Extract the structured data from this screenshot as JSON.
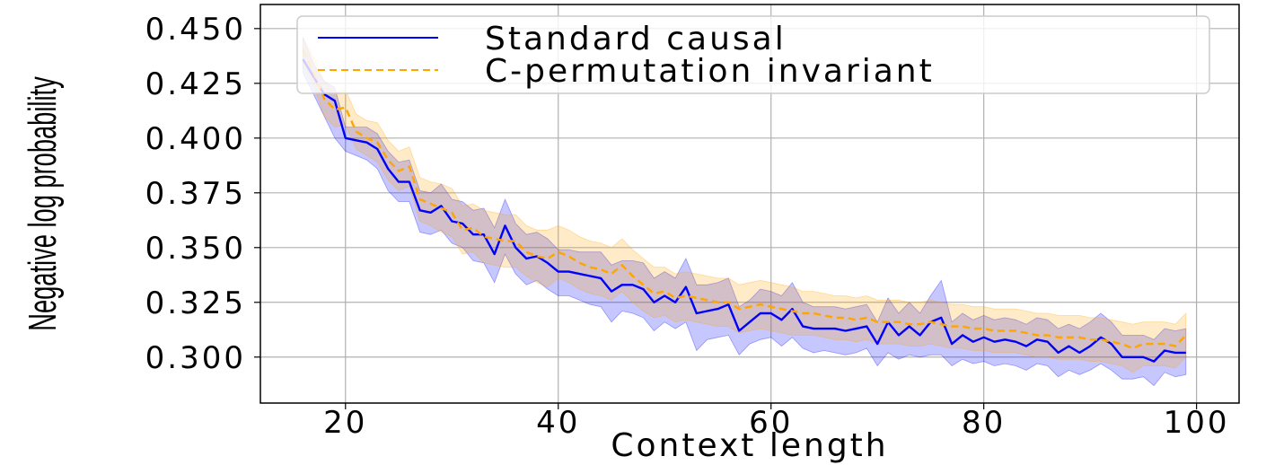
{
  "chart_data": {
    "type": "line",
    "xlabel": "Context length",
    "ylabel": "Negative log probability",
    "xlim": [
      12,
      104
    ],
    "ylim": [
      0.279,
      0.461
    ],
    "xticks": [
      20,
      40,
      60,
      80,
      100
    ],
    "yticks": [
      0.3,
      0.325,
      0.35,
      0.375,
      0.4,
      0.425,
      0.45
    ],
    "xtick_labels": [
      "20",
      "40",
      "60",
      "80",
      "100"
    ],
    "ytick_labels": [
      "0.300",
      "0.325",
      "0.350",
      "0.375",
      "0.400",
      "0.425",
      "0.450"
    ],
    "grid": true,
    "legend_position": "top-right",
    "x": [
      16,
      17,
      18,
      19,
      20,
      21,
      22,
      23,
      24,
      25,
      26,
      27,
      28,
      29,
      30,
      31,
      32,
      33,
      34,
      35,
      36,
      37,
      38,
      39,
      40,
      41,
      42,
      43,
      44,
      45,
      46,
      47,
      48,
      49,
      50,
      51,
      52,
      53,
      54,
      55,
      56,
      57,
      58,
      59,
      60,
      61,
      62,
      63,
      64,
      65,
      66,
      67,
      68,
      69,
      70,
      71,
      72,
      73,
      74,
      75,
      76,
      77,
      78,
      79,
      80,
      81,
      82,
      83,
      84,
      85,
      86,
      87,
      88,
      89,
      90,
      91,
      92,
      93,
      94,
      95,
      96,
      97,
      98,
      99
    ],
    "series": [
      {
        "name": "Standard causal",
        "color": "#0000ff",
        "style": "solid",
        "values": [
          0.436,
          0.428,
          0.42,
          0.417,
          0.4,
          0.399,
          0.398,
          0.395,
          0.386,
          0.38,
          0.38,
          0.367,
          0.366,
          0.369,
          0.362,
          0.361,
          0.356,
          0.356,
          0.347,
          0.36,
          0.35,
          0.345,
          0.346,
          0.343,
          0.339,
          0.339,
          0.338,
          0.337,
          0.336,
          0.33,
          0.333,
          0.333,
          0.331,
          0.325,
          0.328,
          0.325,
          0.332,
          0.32,
          0.321,
          0.322,
          0.324,
          0.312,
          0.316,
          0.32,
          0.32,
          0.317,
          0.322,
          0.314,
          0.313,
          0.313,
          0.313,
          0.312,
          0.313,
          0.314,
          0.306,
          0.316,
          0.31,
          0.314,
          0.31,
          0.316,
          0.318,
          0.306,
          0.31,
          0.307,
          0.309,
          0.307,
          0.308,
          0.307,
          0.305,
          0.308,
          0.307,
          0.302,
          0.305,
          0.302,
          0.305,
          0.309,
          0.306,
          0.3,
          0.3,
          0.3,
          0.298,
          0.303,
          0.302,
          0.302
        ],
        "band_lower": [
          0.43,
          0.42,
          0.41,
          0.4,
          0.394,
          0.392,
          0.39,
          0.386,
          0.376,
          0.371,
          0.371,
          0.357,
          0.356,
          0.358,
          0.352,
          0.35,
          0.344,
          0.343,
          0.334,
          0.347,
          0.338,
          0.333,
          0.335,
          0.331,
          0.328,
          0.328,
          0.326,
          0.324,
          0.323,
          0.316,
          0.321,
          0.32,
          0.318,
          0.312,
          0.316,
          0.313,
          0.316,
          0.303,
          0.308,
          0.309,
          0.31,
          0.301,
          0.306,
          0.308,
          0.309,
          0.305,
          0.309,
          0.304,
          0.302,
          0.303,
          0.302,
          0.301,
          0.302,
          0.304,
          0.296,
          0.302,
          0.299,
          0.301,
          0.3,
          0.301,
          0.301,
          0.296,
          0.299,
          0.297,
          0.298,
          0.296,
          0.297,
          0.296,
          0.294,
          0.297,
          0.296,
          0.291,
          0.294,
          0.292,
          0.294,
          0.297,
          0.294,
          0.29,
          0.29,
          0.291,
          0.287,
          0.293,
          0.291,
          0.292
        ],
        "band_upper": [
          0.446,
          0.434,
          0.426,
          0.423,
          0.405,
          0.405,
          0.405,
          0.402,
          0.394,
          0.389,
          0.39,
          0.376,
          0.375,
          0.379,
          0.372,
          0.371,
          0.367,
          0.368,
          0.359,
          0.372,
          0.361,
          0.356,
          0.357,
          0.354,
          0.349,
          0.349,
          0.348,
          0.348,
          0.348,
          0.342,
          0.344,
          0.344,
          0.343,
          0.336,
          0.339,
          0.336,
          0.345,
          0.333,
          0.333,
          0.334,
          0.336,
          0.323,
          0.326,
          0.331,
          0.33,
          0.328,
          0.334,
          0.325,
          0.323,
          0.323,
          0.323,
          0.322,
          0.323,
          0.324,
          0.316,
          0.327,
          0.32,
          0.325,
          0.32,
          0.328,
          0.335,
          0.316,
          0.32,
          0.317,
          0.319,
          0.317,
          0.318,
          0.317,
          0.315,
          0.318,
          0.317,
          0.313,
          0.315,
          0.313,
          0.316,
          0.32,
          0.316,
          0.31,
          0.31,
          0.31,
          0.308,
          0.313,
          0.312,
          0.313
        ]
      },
      {
        "name": "C-permutation invariant",
        "color": "#ffa500",
        "style": "dashed",
        "values": [
          0.44,
          0.43,
          0.418,
          0.413,
          0.414,
          0.403,
          0.4,
          0.398,
          0.39,
          0.385,
          0.387,
          0.372,
          0.37,
          0.368,
          0.366,
          0.358,
          0.359,
          0.355,
          0.354,
          0.353,
          0.353,
          0.348,
          0.346,
          0.345,
          0.348,
          0.346,
          0.343,
          0.341,
          0.34,
          0.338,
          0.342,
          0.337,
          0.333,
          0.329,
          0.33,
          0.327,
          0.328,
          0.327,
          0.326,
          0.325,
          0.325,
          0.322,
          0.323,
          0.324,
          0.323,
          0.322,
          0.321,
          0.32,
          0.32,
          0.319,
          0.318,
          0.318,
          0.317,
          0.318,
          0.316,
          0.316,
          0.316,
          0.315,
          0.315,
          0.316,
          0.315,
          0.314,
          0.314,
          0.313,
          0.313,
          0.312,
          0.312,
          0.312,
          0.311,
          0.31,
          0.31,
          0.309,
          0.309,
          0.309,
          0.308,
          0.308,
          0.307,
          0.306,
          0.304,
          0.306,
          0.306,
          0.306,
          0.305,
          0.31
        ],
        "band_lower": [
          0.434,
          0.424,
          0.41,
          0.405,
          0.406,
          0.395,
          0.392,
          0.389,
          0.381,
          0.376,
          0.378,
          0.362,
          0.36,
          0.357,
          0.355,
          0.347,
          0.348,
          0.343,
          0.342,
          0.341,
          0.341,
          0.337,
          0.334,
          0.332,
          0.336,
          0.334,
          0.331,
          0.329,
          0.328,
          0.326,
          0.33,
          0.325,
          0.321,
          0.318,
          0.319,
          0.316,
          0.317,
          0.316,
          0.315,
          0.314,
          0.314,
          0.311,
          0.312,
          0.313,
          0.312,
          0.311,
          0.31,
          0.31,
          0.31,
          0.309,
          0.308,
          0.308,
          0.307,
          0.308,
          0.306,
          0.306,
          0.306,
          0.305,
          0.305,
          0.306,
          0.305,
          0.304,
          0.304,
          0.303,
          0.303,
          0.302,
          0.302,
          0.302,
          0.301,
          0.3,
          0.3,
          0.299,
          0.299,
          0.299,
          0.298,
          0.298,
          0.297,
          0.296,
          0.293,
          0.296,
          0.296,
          0.296,
          0.295,
          0.3
        ],
        "band_upper": [
          0.446,
          0.437,
          0.426,
          0.421,
          0.422,
          0.411,
          0.408,
          0.407,
          0.399,
          0.394,
          0.396,
          0.382,
          0.38,
          0.379,
          0.377,
          0.369,
          0.37,
          0.367,
          0.366,
          0.365,
          0.365,
          0.36,
          0.358,
          0.358,
          0.36,
          0.358,
          0.355,
          0.353,
          0.352,
          0.35,
          0.354,
          0.349,
          0.345,
          0.341,
          0.341,
          0.338,
          0.339,
          0.338,
          0.337,
          0.336,
          0.336,
          0.333,
          0.334,
          0.335,
          0.334,
          0.333,
          0.332,
          0.33,
          0.33,
          0.329,
          0.328,
          0.328,
          0.327,
          0.328,
          0.326,
          0.326,
          0.326,
          0.325,
          0.325,
          0.326,
          0.325,
          0.324,
          0.324,
          0.323,
          0.323,
          0.322,
          0.322,
          0.322,
          0.321,
          0.32,
          0.32,
          0.319,
          0.319,
          0.319,
          0.318,
          0.318,
          0.317,
          0.316,
          0.315,
          0.316,
          0.316,
          0.316,
          0.315,
          0.32
        ]
      }
    ]
  }
}
